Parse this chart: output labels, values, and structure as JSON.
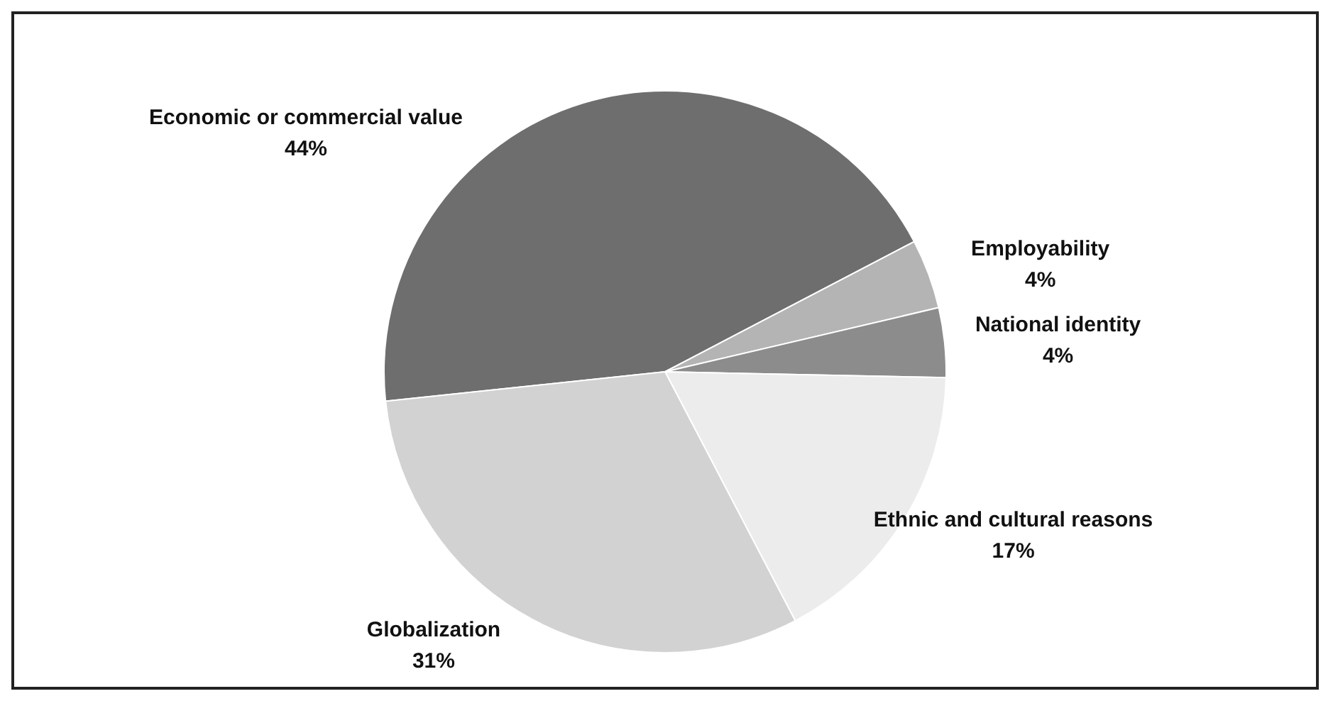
{
  "chart_data": {
    "type": "pie",
    "categories": [
      "Economic or commercial value",
      "Employability",
      "National identity",
      "Ethnic and cultural reasons",
      "Globalization"
    ],
    "values": [
      44,
      4,
      4,
      17,
      31
    ],
    "colors": [
      "#6e6e6e",
      "#b4b4b4",
      "#8c8c8c",
      "#ececec",
      "#d2d2d2"
    ],
    "value_labels": [
      "44%",
      "4%",
      "4%",
      "17%",
      "31%"
    ],
    "legend": false
  }
}
